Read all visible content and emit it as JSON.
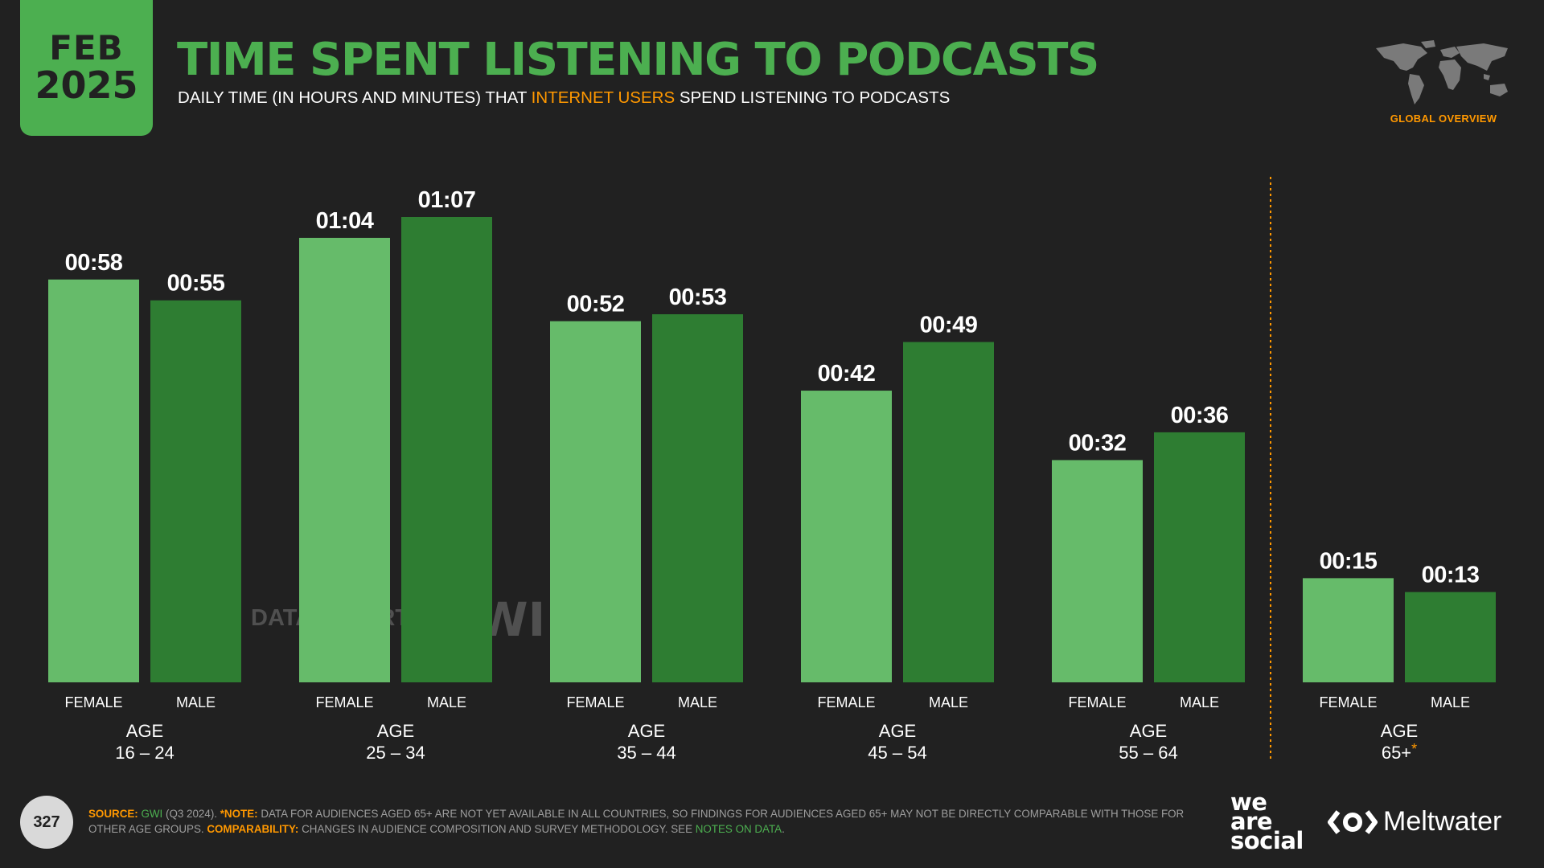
{
  "header": {
    "month": "FEB",
    "year": "2025",
    "title": "TIME SPENT LISTENING TO PODCASTS",
    "subtitle_pre": "DAILY TIME (IN HOURS AND MINUTES) THAT ",
    "subtitle_hl": "INTERNET USERS",
    "subtitle_post": " SPEND LISTENING TO PODCASTS",
    "region_label": "GLOBAL OVERVIEW"
  },
  "chart_data": {
    "type": "bar",
    "title": "TIME SPENT LISTENING TO PODCASTS",
    "unit": "hours:minutes",
    "group_title": "AGE",
    "categories": [
      "16 – 24",
      "25 – 34",
      "35 – 44",
      "45 – 54",
      "55 – 64",
      "65+"
    ],
    "category_note_marker": "*",
    "series": [
      {
        "name": "FEMALE",
        "color": "#66bb6a",
        "values": [
          58,
          64,
          52,
          42,
          32,
          15
        ],
        "labels": [
          "00:58",
          "01:04",
          "00:52",
          "00:42",
          "00:32",
          "00:15"
        ]
      },
      {
        "name": "MALE",
        "color": "#2e7d32",
        "values": [
          55,
          67,
          53,
          49,
          36,
          13
        ],
        "labels": [
          "00:55",
          "01:07",
          "00:53",
          "00:49",
          "00:36",
          "00:13"
        ]
      }
    ],
    "ylim": [
      0,
      67
    ],
    "grid": false,
    "separator_color": "#ff9800"
  },
  "watermark": {
    "brand1": "DATAREPORTAL",
    "brand2": "GWI."
  },
  "footer": {
    "page_number": "327",
    "source_label": "SOURCE:",
    "source_gwi": "GWI",
    "source_period": " (Q3 2024). ",
    "note_label": "*NOTE:",
    "note_text": " DATA FOR AUDIENCES AGED 65+ ARE NOT YET AVAILABLE IN ALL COUNTRIES, SO FINDINGS FOR AUDIENCES AGED 65+ MAY NOT BE DIRECTLY COMPARABLE WITH THOSE FOR OTHER AGE GROUPS. ",
    "comp_label": "COMPARABILITY:",
    "comp_text": " CHANGES IN AUDIENCE COMPOSITION AND SURVEY METHODOLOGY. SEE ",
    "notes_link": "NOTES ON DATA",
    "end": "."
  },
  "logos": {
    "was_line1": "we",
    "was_line2": "are",
    "was_line3": "social",
    "meltwater": "Meltwater"
  },
  "colors": {
    "background": "#212121",
    "accent_green": "#4caf50",
    "accent_orange": "#ff9800"
  }
}
